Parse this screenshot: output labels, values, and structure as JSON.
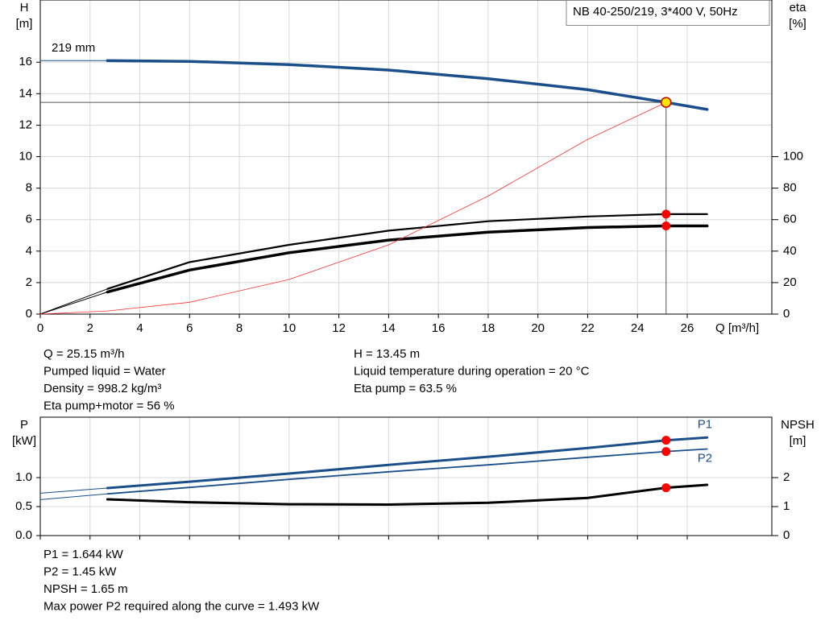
{
  "chart_data": [
    {
      "type": "line",
      "label_box": "NB 40-250/219, 3*400 V, 50Hz",
      "curve_label": "219 mm",
      "ylabel": [
        "H",
        "[m]"
      ],
      "y2label": [
        "eta",
        "[%]"
      ],
      "xlabel": "Q [m³/h]",
      "xlim": [
        0,
        29.4
      ],
      "xticks": [
        0,
        2,
        4,
        6,
        8,
        10,
        12,
        14,
        16,
        18,
        20,
        22,
        24,
        26
      ],
      "ylim": [
        0,
        19.95
      ],
      "yticks": [
        0,
        2,
        4,
        6,
        8,
        10,
        12,
        14,
        16
      ],
      "y2lim": [
        0,
        199.5
      ],
      "y2ticks": [
        0,
        20,
        40,
        60,
        80,
        100
      ],
      "grid": true,
      "show_x_tick_labels": true,
      "duty_lines": true,
      "x": [
        0,
        2.7,
        6,
        10,
        14,
        18,
        22,
        25.15,
        26.8
      ],
      "series": [
        {
          "color": "#1a4f8a",
          "width": 1,
          "values": [
            16.1,
            16.1,
            null,
            null,
            null,
            null,
            null,
            null,
            null
          ]
        },
        {
          "color": "#1a4f8a",
          "width": 3.5,
          "values": [
            null,
            16.1,
            16.05,
            15.85,
            15.5,
            14.95,
            14.25,
            13.45,
            13.0
          ]
        },
        {
          "color": "#000000",
          "width": 1,
          "axis": "y2",
          "values": [
            0,
            16,
            null,
            null,
            null,
            null,
            null,
            null,
            null
          ]
        },
        {
          "color": "#000000",
          "width": 2.2,
          "axis": "y2",
          "values": [
            null,
            16,
            33,
            44,
            53,
            59,
            62,
            63.5,
            63.5
          ]
        },
        {
          "color": "#000000",
          "width": 1,
          "axis": "y2",
          "values": [
            0,
            14,
            null,
            null,
            null,
            null,
            null,
            null,
            null
          ]
        },
        {
          "color": "#000000",
          "width": 3.5,
          "axis": "y2",
          "values": [
            null,
            14,
            28,
            39,
            47,
            52,
            55,
            56,
            56
          ]
        },
        {
          "color": "#ff3030",
          "width": 0.8,
          "values": [
            0,
            0.2,
            0.75,
            2.2,
            4.4,
            7.5,
            11.1,
            13.45,
            null
          ]
        }
      ],
      "points": [
        {
          "x": 25.15,
          "y": 13.45,
          "color": "#ffe600"
        },
        {
          "x": 25.15,
          "y": 63.5,
          "axis": "y2",
          "color": "#ff0000"
        },
        {
          "x": 25.15,
          "y": 56,
          "axis": "y2",
          "color": "#ff0000"
        }
      ],
      "info": [
        [
          "Q = 25.15 m³/h",
          "Pumped liquid = Water",
          "Density = 998.2 kg/m³",
          "Eta pump+motor = 56 %"
        ],
        [
          "H = 13.45 m",
          "Liquid temperature during operation = 20 °C",
          "Eta pump = 63.5 %"
        ]
      ]
    },
    {
      "type": "line",
      "ylabel": [
        "P",
        "[kW]"
      ],
      "y2label": [
        "NPSH",
        "[m]"
      ],
      "xlim": [
        0,
        29.4
      ],
      "xticks": [
        0,
        2,
        4,
        6,
        8,
        10,
        12,
        14,
        16,
        18,
        20,
        22,
        24,
        26
      ],
      "ylim": [
        0,
        2.042
      ],
      "yticks": [
        {
          "value": 0,
          "label": "0.0"
        },
        {
          "value": 0.5,
          "label": "0.5"
        },
        {
          "value": 1,
          "label": "1.0"
        }
      ],
      "y2lim": [
        0,
        4.083
      ],
      "y2ticks": [
        0,
        1,
        2
      ],
      "grid": true,
      "show_x_tick_labels": false,
      "duty_lines": false,
      "x": [
        0,
        2.7,
        6,
        10,
        14,
        18,
        22,
        25.15,
        26.8
      ],
      "series": [
        {
          "color": "#1a4f8a",
          "width": 1,
          "values": [
            0.73,
            0.82,
            null,
            null,
            null,
            null,
            null,
            null,
            null
          ]
        },
        {
          "name": "P1",
          "color": "#1a4f8a",
          "width": 3,
          "values": [
            null,
            0.82,
            0.93,
            1.07,
            1.22,
            1.36,
            1.51,
            1.644,
            1.69
          ]
        },
        {
          "color": "#1a4f8a",
          "width": 1,
          "values": [
            0.62,
            0.72,
            null,
            null,
            null,
            null,
            null,
            null,
            null
          ]
        },
        {
          "name": "P2",
          "color": "#1a4f8a",
          "width": 1.8,
          "values": [
            null,
            0.72,
            0.83,
            0.97,
            1.1,
            1.22,
            1.35,
            1.45,
            1.493
          ]
        },
        {
          "color": "#000000",
          "width": 3,
          "axis": "y2",
          "values": [
            null,
            1.25,
            1.15,
            1.08,
            1.07,
            1.13,
            1.3,
            1.65,
            1.75
          ]
        }
      ],
      "points": [
        {
          "x": 25.15,
          "y": 1.644,
          "color": "#ff0000"
        },
        {
          "x": 25.15,
          "y": 1.45,
          "color": "#ff0000"
        },
        {
          "x": 25.15,
          "y": 1.65,
          "axis": "y2",
          "color": "#ff0000"
        }
      ],
      "info": [
        [
          "P1 = 1.644 kW",
          "P2 = 1.45 kW",
          "NPSH = 1.65 m",
          "Max power P2 required along the curve = 1.493 kW"
        ]
      ]
    }
  ]
}
